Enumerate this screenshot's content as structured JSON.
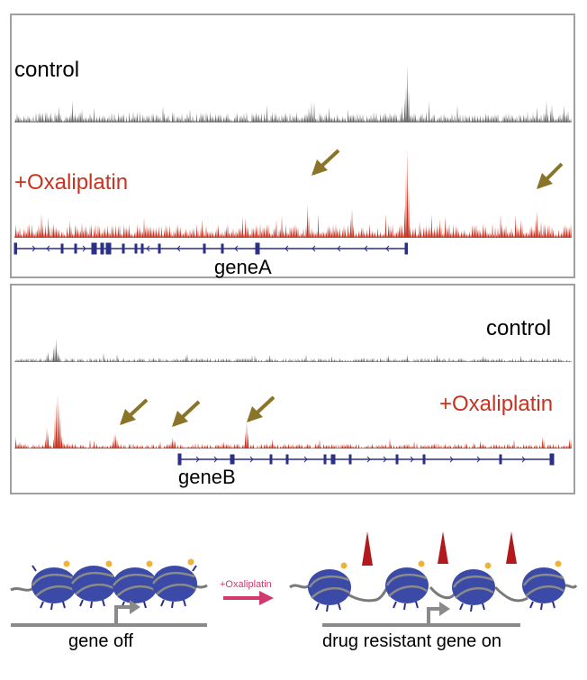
{
  "panelA": {
    "control_label": "control",
    "treated_label": "+Oxaliplatin",
    "gene_label": "geneA"
  },
  "panelB": {
    "control_label": "control",
    "treated_label": "+Oxaliplatin",
    "gene_label": "geneB"
  },
  "schematic": {
    "treatment_label": "+Oxaliplatin",
    "state_off_label": "gene off",
    "state_on_label": "drug resistant gene on"
  },
  "colors": {
    "control_track": "#6b6b6b",
    "treated_track": "#c8321f",
    "treated_text": "#c8321f",
    "arrow": "#8a7428",
    "gene_model": "#2b2f86",
    "nucleosome": "#3a4aa6",
    "dna": "#7a7a7a",
    "mark": "#f0b23a",
    "spike": "#b3191c",
    "treatment_arrow": "#d03a6e",
    "panel_border": "#a0a0a0"
  }
}
